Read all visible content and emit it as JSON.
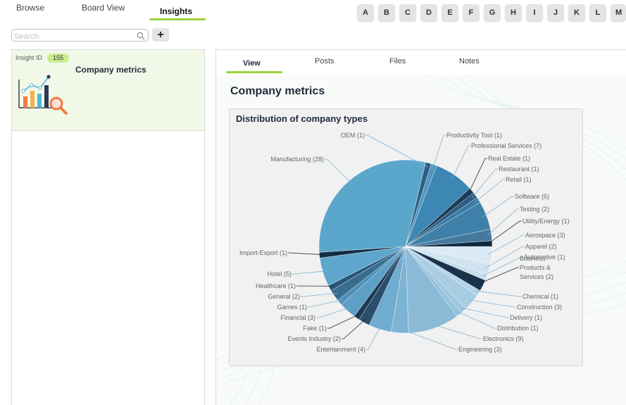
{
  "nav": {
    "tabs": [
      {
        "label": "Browse"
      },
      {
        "label": "Board View"
      },
      {
        "label": "Insights"
      }
    ]
  },
  "alphabet": [
    "A",
    "B",
    "C",
    "D",
    "E",
    "F",
    "G",
    "H",
    "I",
    "J",
    "K",
    "L",
    "M"
  ],
  "search": {
    "placeholder": "Search",
    "value": "",
    "icon": "search-icon"
  },
  "add_button": {
    "label": "+"
  },
  "insight_card": {
    "id_label": "Insight ID",
    "id_value": "155",
    "title": "Company metrics",
    "icon": "chart-magnifier-icon"
  },
  "content": {
    "tabs": [
      {
        "label": "View"
      },
      {
        "label": "Posts"
      },
      {
        "label": "Files"
      },
      {
        "label": "Notes"
      }
    ],
    "page_title": "Company metrics"
  },
  "colors": {
    "accent": "#9bd43a",
    "badge": "#c9ec8f",
    "card_bg": "#f2f8e8",
    "title": "#1e2a3a"
  },
  "chart_data": {
    "type": "pie",
    "title": "Distribution of company types",
    "categories": [
      "Aerospace",
      "Apparel",
      "Automotive",
      "Business Products & Services",
      "Chemical",
      "Construction",
      "Delivery",
      "Distribution",
      "Electronics",
      "Engineering",
      "Entertainment",
      "Events Industry",
      "Fake",
      "Financial",
      "Games",
      "General",
      "Healthcare",
      "Hotel",
      "Import-Export",
      "Manufacturing",
      "OEM",
      "Productivity Tool",
      "Professional Services",
      "Real Estate",
      "Restaurant",
      "Retail",
      "Software",
      "Testing",
      "Utility/Energy"
    ],
    "values": [
      3,
      2,
      1,
      2,
      1,
      3,
      1,
      1,
      9,
      3,
      4,
      2,
      1,
      3,
      1,
      2,
      1,
      5,
      1,
      28,
      1,
      1,
      7,
      1,
      1,
      1,
      5,
      2,
      1
    ],
    "labels": [
      "Aerospace (3)",
      "Apparel (2)",
      "Automotive (1)",
      "Business Products & Services (2)",
      "Chemical (1)",
      "Construction (3)",
      "Delivery (1)",
      "Distribution (1)",
      "Electronics (9)",
      "Engineering (3)",
      "Entertainment (4)",
      "Events Industry (2)",
      "Fake (1)",
      "Financial (3)",
      "Games (1)",
      "General (2)",
      "Healthcare (1)",
      "Hotel (5)",
      "Import-Export (1)",
      "Manufacturing (28)",
      "OEM (1)",
      "Productivity Tool (1)",
      "Professional Services (7)",
      "Real Estate (1)",
      "Restaurant (1)",
      "Retail (1)",
      "Software (5)",
      "Testing (2)",
      "Utility/Energy (1)"
    ],
    "colors": [
      "#dbeaf4",
      "#d0e4f0",
      "#c6deec",
      "#19334a",
      "#b5d4e6",
      "#a9cde3",
      "#9fc7df",
      "#95c2dc",
      "#8bbad7",
      "#7db3d3",
      "#70acd0",
      "#2a4f6d",
      "#1c3a55",
      "#5e9fc7",
      "#4f90b8",
      "#386d90",
      "#2a5678",
      "#5ea6cc",
      "#132d44",
      "#5ba7cc",
      "#2e5f82",
      "#4f97c0",
      "#3c87b4",
      "#1d3c58",
      "#2c5c80",
      "#3a7aa3",
      "#3f80a8",
      "#45789c",
      "#0f2a40"
    ]
  }
}
